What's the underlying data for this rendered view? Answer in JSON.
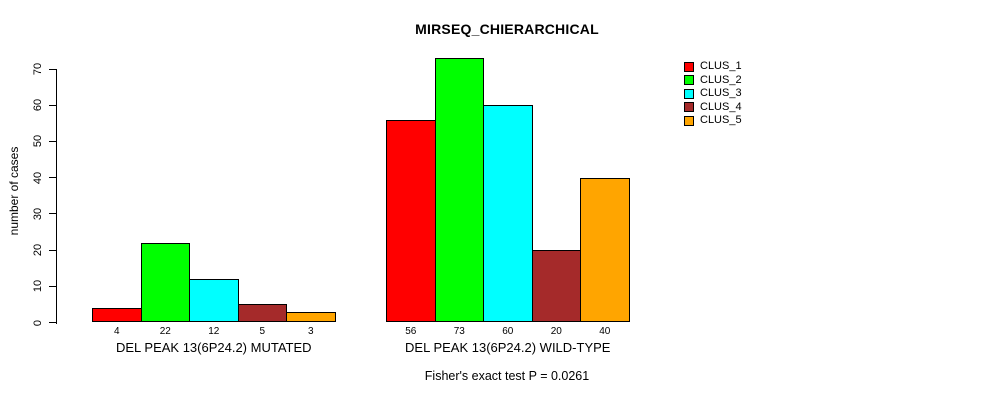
{
  "chart_data": {
    "type": "bar",
    "title": "MIRSEQ_CHIERARCHICAL",
    "ylabel": "number of cases",
    "xlabel": "",
    "ylim": [
      0,
      70
    ],
    "yticks": [
      0,
      10,
      20,
      30,
      40,
      50,
      60,
      70
    ],
    "grid": false,
    "legend_position": "top-right",
    "series": [
      {
        "name": "CLUS_1",
        "color": "#FF0000"
      },
      {
        "name": "CLUS_2",
        "color": "#00FF00"
      },
      {
        "name": "CLUS_3",
        "color": "#00FFFF"
      },
      {
        "name": "CLUS_4",
        "color": "#A52A2A"
      },
      {
        "name": "CLUS_5",
        "color": "#FFA500"
      }
    ],
    "groups": [
      {
        "label": "DEL PEAK 13(6P24.2) MUTATED",
        "values": [
          4,
          22,
          12,
          5,
          3
        ]
      },
      {
        "label": "DEL PEAK 13(6P24.2) WILD-TYPE",
        "values": [
          56,
          73,
          60,
          20,
          40
        ]
      }
    ],
    "caption": "Fisher's exact test P = 0.0261"
  }
}
